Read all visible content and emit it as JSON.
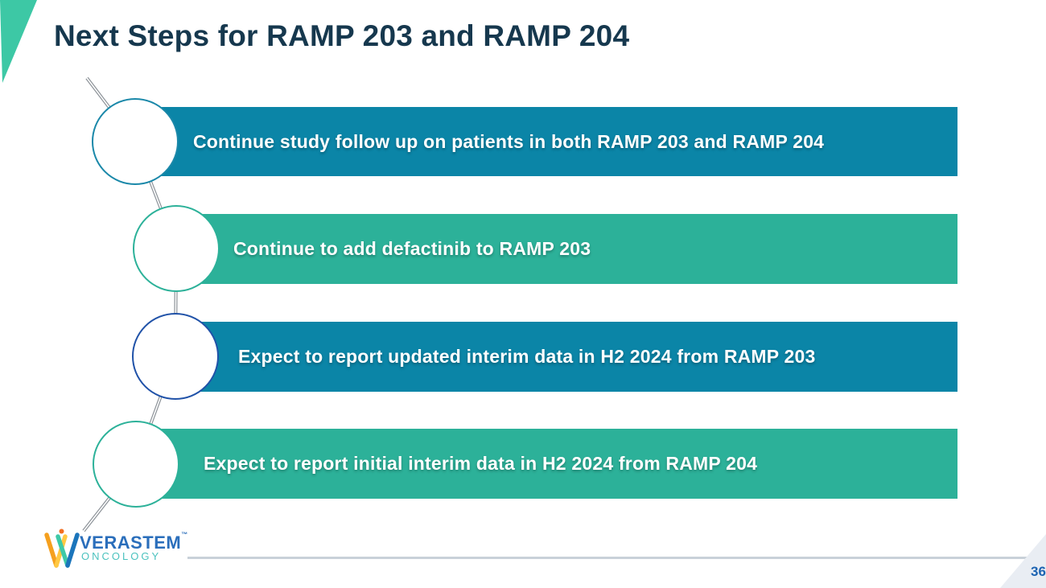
{
  "slide": {
    "title": "Next Steps for RAMP 203 and RAMP 204",
    "page_number": "36"
  },
  "steps": [
    {
      "label": "Continue study follow up on patients in both RAMP 203 and RAMP 204",
      "bar_color": "#0B85A7",
      "circle_border": "#1A88A9"
    },
    {
      "label": "Continue to add defactinib to RAMP 203",
      "bar_color": "#2CB199",
      "circle_border": "#2CB199"
    },
    {
      "label": "Expect to report updated interim data in H2 2024 from RAMP 203",
      "bar_color": "#0B85A7",
      "circle_border": "#2052A8"
    },
    {
      "label": "Expect to report initial interim data in H2 2024 from RAMP 204",
      "bar_color": "#2CB199",
      "circle_border": "#2CB199"
    }
  ],
  "logo": {
    "brand": "VERASTEM",
    "trademark": "™",
    "subbrand": "ONCOLOGY",
    "colors": {
      "brand_text": "#2A6EBB",
      "subbrand_text": "#4BC2BF",
      "mark_orange": "#F5A01E",
      "mark_yellow": "#FFC843",
      "mark_teal": "#3EC9A7",
      "mark_blue": "#1B75BB",
      "mark_dot": "#F26F21"
    }
  },
  "decor": {
    "corner_triangle_color": "#3DC8A5",
    "title_color": "#16384E",
    "thread_color": "#8D9399",
    "footer_line_color": "#C9D1D9",
    "bottom_triangle_color": "#E9EDF3",
    "page_number_color": "#1C63B2"
  }
}
